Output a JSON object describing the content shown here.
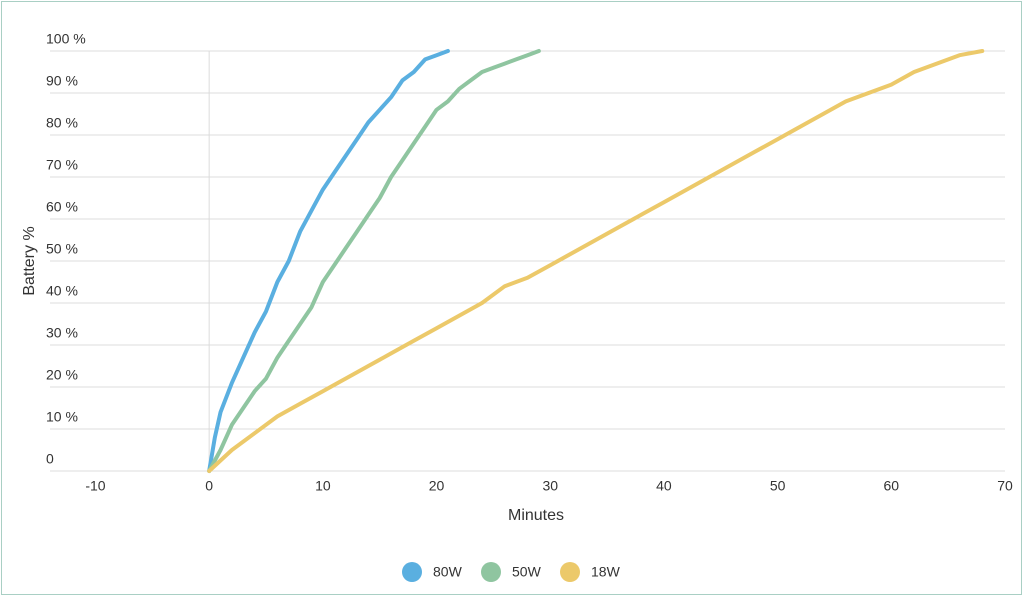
{
  "chart_data": {
    "type": "line",
    "x_label": "Minutes",
    "y_label": "Battery %",
    "xlim": [
      -14,
      70
    ],
    "xticks": [
      -10,
      0,
      10,
      20,
      30,
      40,
      50,
      60,
      70
    ],
    "ylim": [
      0,
      100
    ],
    "yticks": [
      0,
      {
        "value": 10,
        "label": "10 %"
      },
      {
        "value": 20,
        "label": "20 %"
      },
      {
        "value": 30,
        "label": "30 %"
      },
      {
        "value": 40,
        "label": "40 %"
      },
      {
        "value": 50,
        "label": "50 %"
      },
      {
        "value": 60,
        "label": "60 %"
      },
      {
        "value": 70,
        "label": "70 %"
      },
      {
        "value": 80,
        "label": "80 %"
      },
      {
        "value": 90,
        "label": "90 %"
      },
      {
        "value": 100,
        "label": "100 %"
      }
    ],
    "grid": true,
    "legend": "bottom",
    "series": [
      {
        "name": "80W",
        "color": "#5aafe0",
        "x": [
          0,
          0.5,
          1,
          2,
          3,
          4,
          5,
          6,
          7,
          8,
          9,
          10,
          11,
          12,
          13,
          14,
          15,
          16,
          17,
          18,
          19,
          20,
          21
        ],
        "values": [
          0,
          8,
          14,
          21,
          27,
          33,
          38,
          45,
          50,
          57,
          62,
          67,
          71,
          75,
          79,
          83,
          86,
          89,
          93,
          95,
          98,
          99,
          100
        ]
      },
      {
        "name": "50W",
        "color": "#8fc5a0",
        "x": [
          0,
          1,
          2,
          3,
          4,
          5,
          6,
          7,
          8,
          9,
          10,
          11,
          12,
          13,
          14,
          15,
          16,
          17,
          18,
          19,
          20,
          21,
          22,
          23,
          24,
          25,
          26,
          27,
          28,
          29
        ],
        "values": [
          0,
          5,
          11,
          15,
          19,
          22,
          27,
          31,
          35,
          39,
          45,
          49,
          53,
          57,
          61,
          65,
          70,
          74,
          78,
          82,
          86,
          88,
          91,
          93,
          95,
          96,
          97,
          98,
          99,
          100
        ]
      },
      {
        "name": "18W",
        "color": "#ecc96a",
        "x": [
          0,
          2,
          4,
          6,
          8,
          10,
          12,
          14,
          16,
          18,
          20,
          22,
          24,
          26,
          28,
          30,
          32,
          34,
          36,
          38,
          40,
          42,
          44,
          46,
          48,
          50,
          52,
          54,
          56,
          58,
          60,
          62,
          64,
          66,
          68
        ],
        "values": [
          0,
          5,
          9,
          13,
          16,
          19,
          22,
          25,
          28,
          31,
          34,
          37,
          40,
          44,
          46,
          49,
          52,
          55,
          58,
          61,
          64,
          67,
          70,
          73,
          76,
          79,
          82,
          85,
          88,
          90,
          92,
          95,
          97,
          99,
          100
        ]
      }
    ]
  }
}
